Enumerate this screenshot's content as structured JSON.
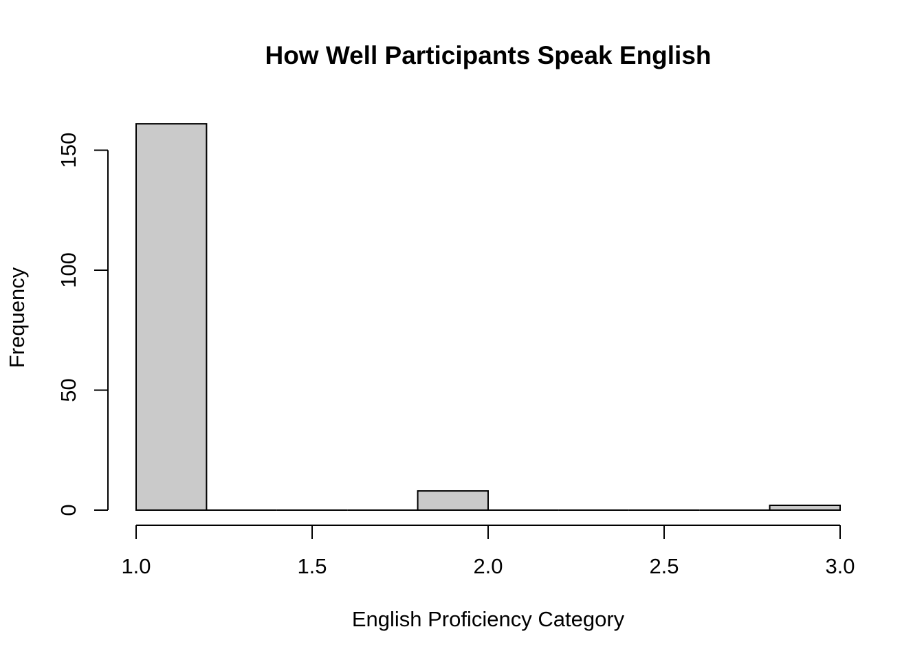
{
  "chart_data": {
    "type": "bar",
    "title": "How Well Participants Speak English",
    "xlabel": "English Proficiency Category",
    "ylabel": "Frequency",
    "xlim": [
      1.0,
      3.0
    ],
    "ylim": [
      0,
      161
    ],
    "bins": [
      {
        "x0": 1.0,
        "x1": 1.2,
        "count": 161
      },
      {
        "x0": 1.2,
        "x1": 1.4,
        "count": 0
      },
      {
        "x0": 1.4,
        "x1": 1.6,
        "count": 0
      },
      {
        "x0": 1.6,
        "x1": 1.8,
        "count": 0
      },
      {
        "x0": 1.8,
        "x1": 2.0,
        "count": 8
      },
      {
        "x0": 2.0,
        "x1": 2.2,
        "count": 0
      },
      {
        "x0": 2.2,
        "x1": 2.4,
        "count": 0
      },
      {
        "x0": 2.4,
        "x1": 2.6,
        "count": 0
      },
      {
        "x0": 2.6,
        "x1": 2.8,
        "count": 0
      },
      {
        "x0": 2.8,
        "x1": 3.0,
        "count": 2
      }
    ],
    "x_ticks": [
      {
        "value": 1.0,
        "label": "1.0"
      },
      {
        "value": 1.5,
        "label": "1.5"
      },
      {
        "value": 2.0,
        "label": "2.0"
      },
      {
        "value": 2.5,
        "label": "2.5"
      },
      {
        "value": 3.0,
        "label": "3.0"
      }
    ],
    "y_ticks": [
      {
        "value": 0,
        "label": "0"
      },
      {
        "value": 50,
        "label": "50"
      },
      {
        "value": 100,
        "label": "100"
      },
      {
        "value": 150,
        "label": "150"
      }
    ],
    "bar_color": "#cacaca",
    "grid": false,
    "legend": "none"
  }
}
